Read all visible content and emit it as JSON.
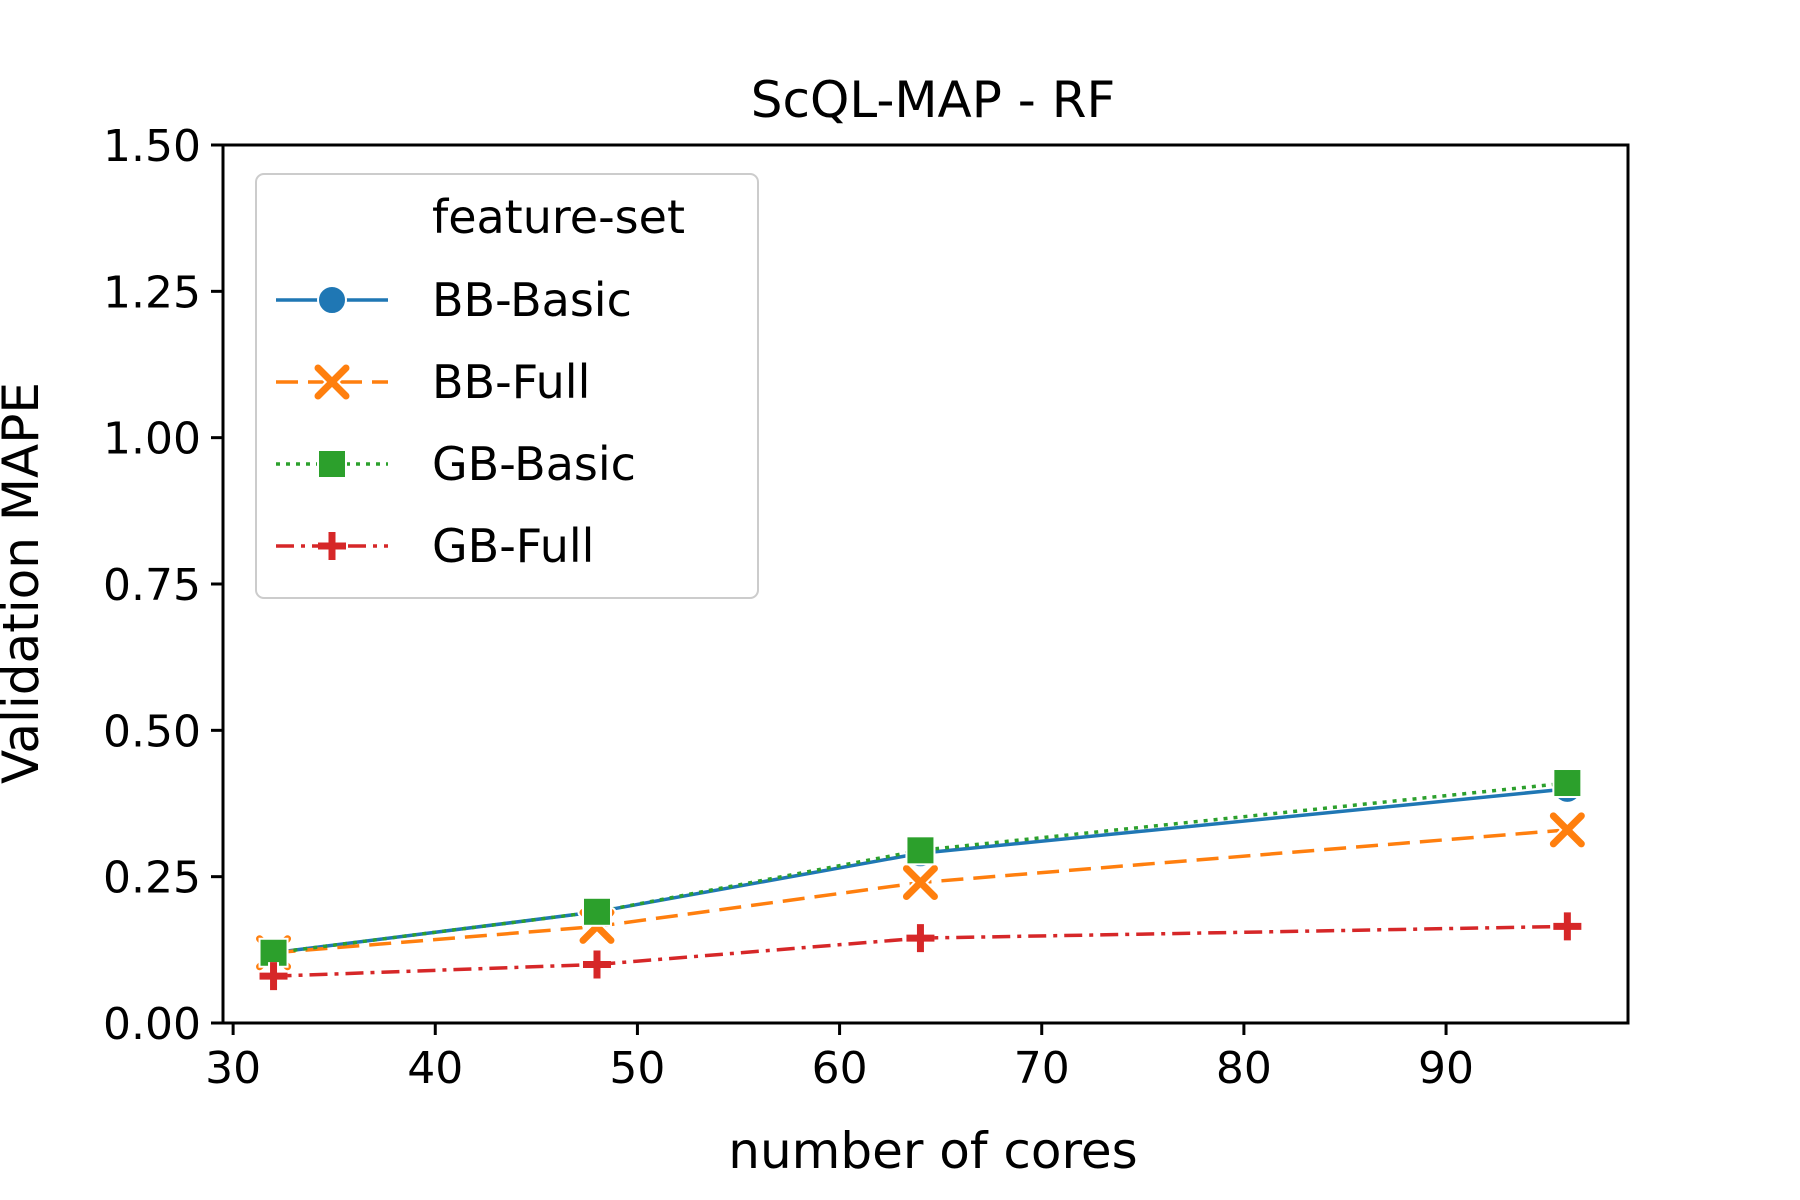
{
  "chart_data": {
    "type": "line",
    "title": "ScQL-MAP - RF",
    "xlabel": "number of cores",
    "ylabel": "Validation MAPE",
    "x": [
      32,
      48,
      64,
      96
    ],
    "xlim": [
      29.5,
      99
    ],
    "ylim": [
      0,
      1.5
    ],
    "xticks": [
      30,
      40,
      50,
      60,
      70,
      80,
      90
    ],
    "yticks": [
      0.0,
      0.25,
      0.5,
      0.75,
      1.0,
      1.25,
      1.5
    ],
    "xtick_labels": [
      "30",
      "40",
      "50",
      "60",
      "70",
      "80",
      "90"
    ],
    "ytick_labels": [
      "0.00",
      "0.25",
      "0.50",
      "0.75",
      "1.00",
      "1.25",
      "1.50"
    ],
    "grid": false,
    "legend": {
      "title": "feature-set",
      "position": "upper-left"
    },
    "series": [
      {
        "name": "BB-Basic",
        "values": [
          0.12,
          0.19,
          0.29,
          0.4
        ],
        "color": "#1f77b4",
        "linestyle": "solid",
        "marker": "circle"
      },
      {
        "name": "BB-Full",
        "values": [
          0.12,
          0.165,
          0.24,
          0.33
        ],
        "color": "#ff7f0e",
        "linestyle": "dashed",
        "marker": "x"
      },
      {
        "name": "GB-Basic",
        "values": [
          0.12,
          0.19,
          0.295,
          0.41
        ],
        "color": "#2ca02c",
        "linestyle": "dotted",
        "marker": "square"
      },
      {
        "name": "GB-Full",
        "values": [
          0.08,
          0.1,
          0.145,
          0.165
        ],
        "color": "#d62728",
        "linestyle": "dashdot",
        "marker": "plus"
      }
    ]
  }
}
